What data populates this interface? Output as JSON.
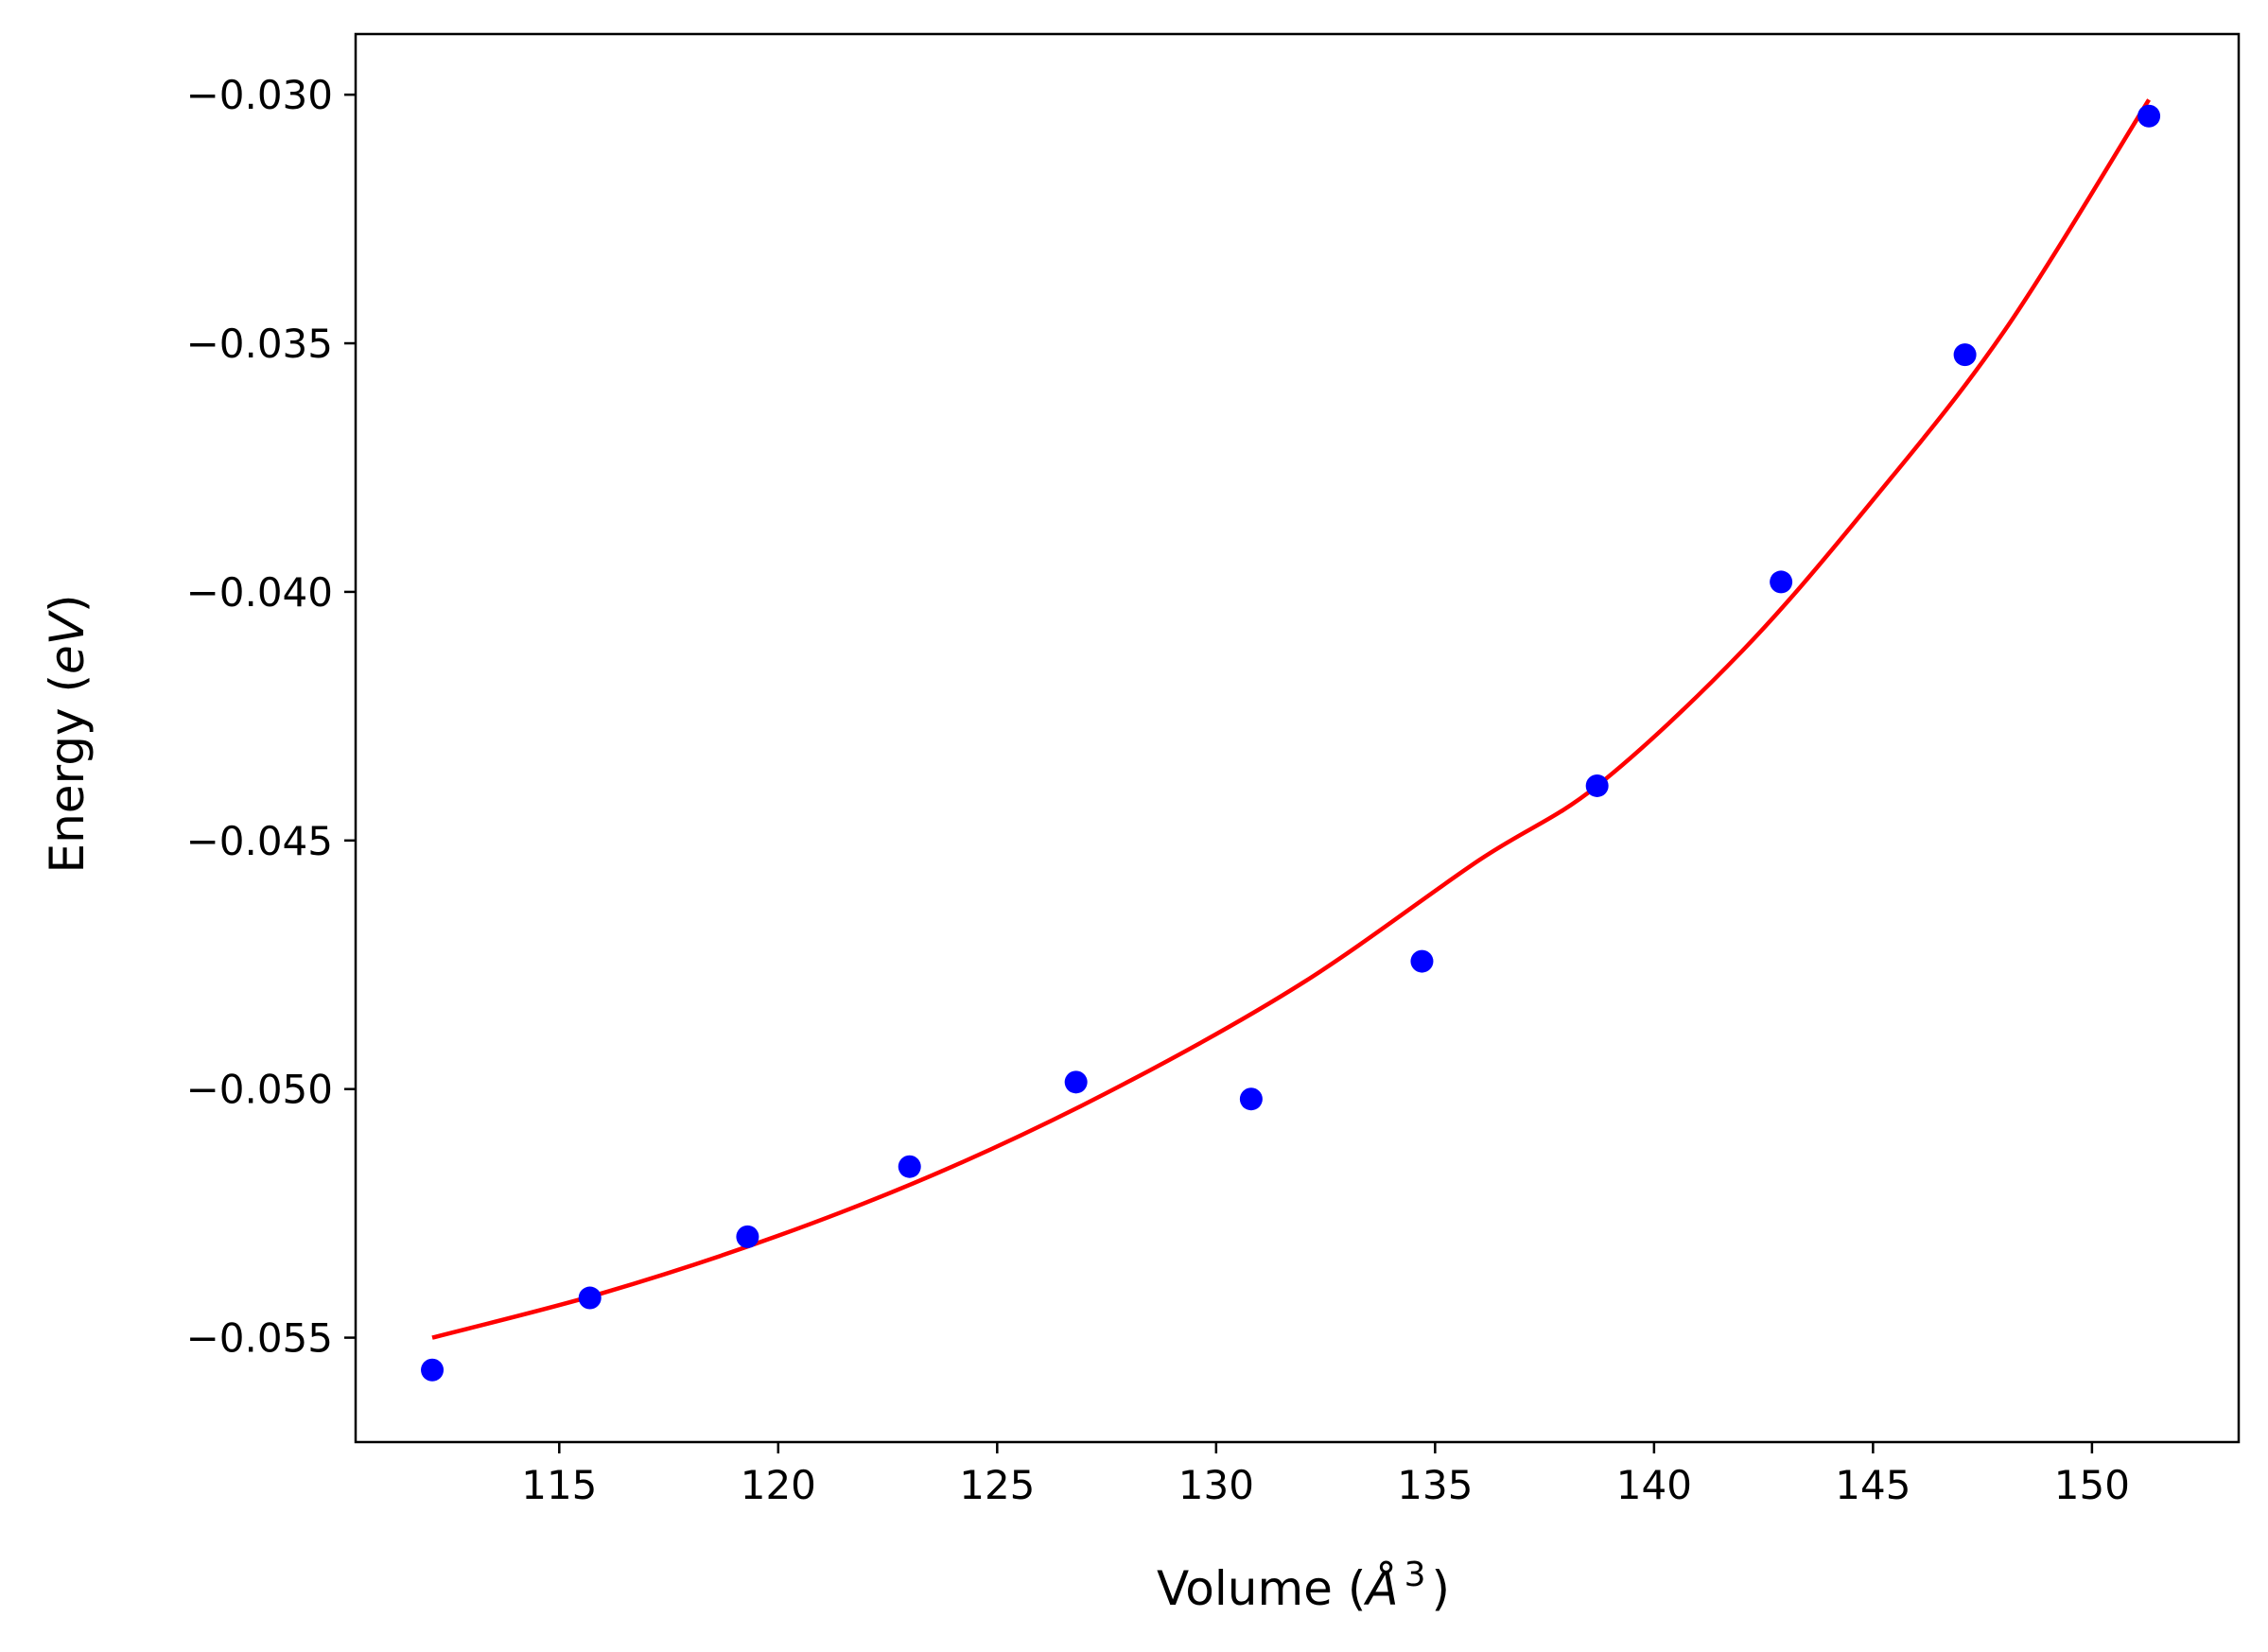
{
  "chart_data": {
    "type": "scatter",
    "xlabel_main": "Volume (",
    "xlabel_unit": "Å",
    "xlabel_sup": "3",
    "xlabel_close": ")",
    "ylabel_main": "Energy (",
    "ylabel_unit": "eV",
    "ylabel_close": ")",
    "xlim": [
      110.35,
      153.35
    ],
    "ylim": [
      -0.0571,
      -0.02878
    ],
    "x_ticks": [
      115,
      120,
      125,
      130,
      135,
      140,
      145,
      150
    ],
    "x_tick_labels": [
      "115",
      "120",
      "125",
      "130",
      "135",
      "140",
      "145",
      "150"
    ],
    "y_ticks": [
      -0.03,
      -0.035,
      -0.04,
      -0.045,
      -0.05,
      -0.055
    ],
    "y_tick_labels": [
      "−0.030",
      "−0.035",
      "−0.040",
      "−0.045",
      "−0.050",
      "−0.055"
    ],
    "grid": false,
    "series": [
      {
        "kind": "points",
        "color": "#0000ff",
        "x": [
          112.1,
          115.7,
          119.3,
          123.0,
          126.8,
          130.8,
          134.7,
          138.7,
          142.9,
          147.1,
          151.3
        ],
        "y": [
          -0.05565,
          -0.0542,
          -0.05297,
          -0.05156,
          -0.04986,
          -0.0502,
          -0.04743,
          -0.0439,
          -0.0398,
          -0.03523,
          -0.03043
        ]
      },
      {
        "kind": "fit-line",
        "color": "#ff0000",
        "x": [
          112.1,
          116.0,
          120.0,
          124.0,
          128.0,
          132.0,
          136.0,
          138.7,
          142.0,
          145.0,
          148.0,
          151.3
        ],
        "y": [
          -0.055,
          -0.0541,
          -0.05295,
          -0.05155,
          -0.04985,
          -0.04785,
          -0.0454,
          -0.0439,
          -0.0412,
          -0.03815,
          -0.03475,
          -0.0301
        ]
      }
    ]
  }
}
